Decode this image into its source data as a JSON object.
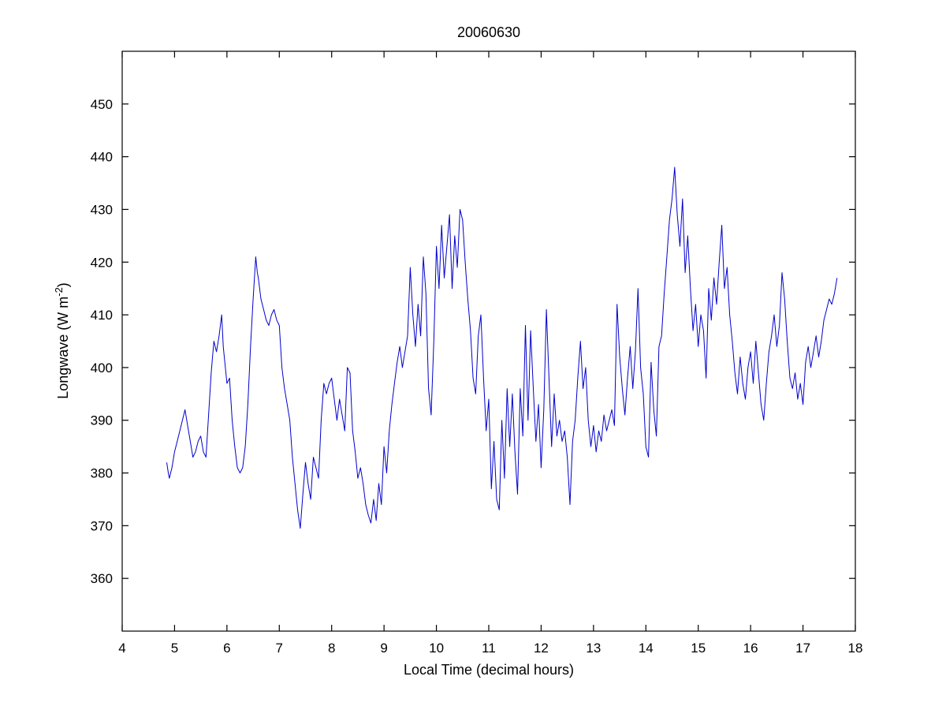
{
  "figure": {
    "background": "#ffffff",
    "axes_color": "#000000"
  },
  "chart_data": {
    "type": "line",
    "title": "20060630",
    "xlabel": "Local Time (decimal hours)",
    "ylabel_main": "Longwave (W m",
    "ylabel_sup": "-2",
    "ylabel_end": ")",
    "xlim": [
      4,
      18
    ],
    "ylim": [
      350,
      460
    ],
    "x_ticks": [
      4,
      5,
      6,
      7,
      8,
      9,
      10,
      11,
      12,
      13,
      14,
      15,
      16,
      17,
      18
    ],
    "y_ticks": [
      360,
      370,
      380,
      390,
      400,
      410,
      420,
      430,
      440,
      450
    ],
    "grid": false,
    "legend": null,
    "line_color": "#0000cd",
    "points": [
      [
        4.85,
        382
      ],
      [
        4.88,
        380
      ],
      [
        4.9,
        379
      ],
      [
        4.95,
        381
      ],
      [
        5.0,
        384
      ],
      [
        5.05,
        386
      ],
      [
        5.1,
        388
      ],
      [
        5.15,
        390
      ],
      [
        5.2,
        392
      ],
      [
        5.25,
        389
      ],
      [
        5.3,
        386
      ],
      [
        5.35,
        383
      ],
      [
        5.4,
        384
      ],
      [
        5.45,
        386
      ],
      [
        5.5,
        387
      ],
      [
        5.55,
        384
      ],
      [
        5.6,
        383
      ],
      [
        5.65,
        391
      ],
      [
        5.7,
        399
      ],
      [
        5.75,
        405
      ],
      [
        5.8,
        403
      ],
      [
        5.85,
        406
      ],
      [
        5.9,
        410
      ],
      [
        5.93,
        404
      ],
      [
        5.95,
        402
      ],
      [
        6.0,
        397
      ],
      [
        6.05,
        398
      ],
      [
        6.1,
        390
      ],
      [
        6.15,
        385
      ],
      [
        6.2,
        381
      ],
      [
        6.25,
        380
      ],
      [
        6.3,
        381
      ],
      [
        6.35,
        385
      ],
      [
        6.4,
        393
      ],
      [
        6.45,
        404
      ],
      [
        6.5,
        413
      ],
      [
        6.55,
        421
      ],
      [
        6.58,
        418
      ],
      [
        6.6,
        417
      ],
      [
        6.65,
        413
      ],
      [
        6.7,
        411
      ],
      [
        6.75,
        409
      ],
      [
        6.8,
        408
      ],
      [
        6.85,
        410
      ],
      [
        6.9,
        411
      ],
      [
        6.95,
        409
      ],
      [
        7.0,
        408
      ],
      [
        7.05,
        400
      ],
      [
        7.1,
        396
      ],
      [
        7.15,
        393
      ],
      [
        7.2,
        390
      ],
      [
        7.25,
        383
      ],
      [
        7.3,
        378
      ],
      [
        7.35,
        373
      ],
      [
        7.4,
        369.5
      ],
      [
        7.45,
        376
      ],
      [
        7.5,
        382
      ],
      [
        7.55,
        378
      ],
      [
        7.6,
        375
      ],
      [
        7.65,
        383
      ],
      [
        7.7,
        381
      ],
      [
        7.75,
        379
      ],
      [
        7.8,
        390
      ],
      [
        7.85,
        397
      ],
      [
        7.9,
        395
      ],
      [
        7.95,
        397
      ],
      [
        8.0,
        398
      ],
      [
        8.05,
        394
      ],
      [
        8.1,
        390
      ],
      [
        8.15,
        394
      ],
      [
        8.2,
        391
      ],
      [
        8.25,
        388
      ],
      [
        8.3,
        400
      ],
      [
        8.35,
        399
      ],
      [
        8.4,
        388
      ],
      [
        8.45,
        384
      ],
      [
        8.5,
        379
      ],
      [
        8.55,
        381
      ],
      [
        8.6,
        378
      ],
      [
        8.65,
        374
      ],
      [
        8.7,
        372
      ],
      [
        8.75,
        370.5
      ],
      [
        8.8,
        375
      ],
      [
        8.85,
        371
      ],
      [
        8.9,
        378
      ],
      [
        8.95,
        374
      ],
      [
        9.0,
        385
      ],
      [
        9.05,
        380
      ],
      [
        9.1,
        388
      ],
      [
        9.15,
        393
      ],
      [
        9.2,
        397
      ],
      [
        9.25,
        401
      ],
      [
        9.3,
        404
      ],
      [
        9.35,
        400
      ],
      [
        9.4,
        403
      ],
      [
        9.45,
        406
      ],
      [
        9.5,
        419
      ],
      [
        9.55,
        410
      ],
      [
        9.6,
        404
      ],
      [
        9.65,
        412
      ],
      [
        9.7,
        406
      ],
      [
        9.75,
        421
      ],
      [
        9.8,
        414
      ],
      [
        9.85,
        396
      ],
      [
        9.9,
        391
      ],
      [
        9.95,
        405
      ],
      [
        10.0,
        423
      ],
      [
        10.05,
        415
      ],
      [
        10.1,
        427
      ],
      [
        10.15,
        417
      ],
      [
        10.2,
        423
      ],
      [
        10.25,
        429
      ],
      [
        10.3,
        415
      ],
      [
        10.35,
        425
      ],
      [
        10.4,
        419
      ],
      [
        10.45,
        430
      ],
      [
        10.5,
        428
      ],
      [
        10.55,
        420
      ],
      [
        10.6,
        413
      ],
      [
        10.65,
        407
      ],
      [
        10.7,
        398
      ],
      [
        10.75,
        395
      ],
      [
        10.8,
        406
      ],
      [
        10.85,
        410
      ],
      [
        10.9,
        398
      ],
      [
        10.95,
        388
      ],
      [
        11.0,
        394
      ],
      [
        11.05,
        377
      ],
      [
        11.1,
        386
      ],
      [
        11.15,
        375
      ],
      [
        11.2,
        373
      ],
      [
        11.25,
        390
      ],
      [
        11.3,
        379
      ],
      [
        11.35,
        396
      ],
      [
        11.4,
        385
      ],
      [
        11.45,
        395
      ],
      [
        11.5,
        384
      ],
      [
        11.55,
        376
      ],
      [
        11.6,
        396
      ],
      [
        11.65,
        387
      ],
      [
        11.7,
        408
      ],
      [
        11.75,
        390
      ],
      [
        11.8,
        407
      ],
      [
        11.85,
        396
      ],
      [
        11.9,
        386
      ],
      [
        11.95,
        393
      ],
      [
        12.0,
        381
      ],
      [
        12.05,
        392
      ],
      [
        12.1,
        411
      ],
      [
        12.15,
        398
      ],
      [
        12.2,
        385
      ],
      [
        12.25,
        395
      ],
      [
        12.3,
        387
      ],
      [
        12.35,
        390
      ],
      [
        12.4,
        386
      ],
      [
        12.45,
        388
      ],
      [
        12.5,
        383
      ],
      [
        12.55,
        374
      ],
      [
        12.6,
        386
      ],
      [
        12.65,
        390
      ],
      [
        12.7,
        398
      ],
      [
        12.75,
        405
      ],
      [
        12.8,
        396
      ],
      [
        12.85,
        400
      ],
      [
        12.9,
        390
      ],
      [
        12.95,
        385
      ],
      [
        13.0,
        389
      ],
      [
        13.05,
        384
      ],
      [
        13.1,
        388
      ],
      [
        13.15,
        386
      ],
      [
        13.2,
        391
      ],
      [
        13.25,
        388
      ],
      [
        13.3,
        390
      ],
      [
        13.35,
        392
      ],
      [
        13.4,
        389
      ],
      [
        13.45,
        412
      ],
      [
        13.5,
        402
      ],
      [
        13.55,
        396
      ],
      [
        13.6,
        391
      ],
      [
        13.65,
        398
      ],
      [
        13.7,
        404
      ],
      [
        13.75,
        396
      ],
      [
        13.8,
        403
      ],
      [
        13.85,
        415
      ],
      [
        13.9,
        400
      ],
      [
        13.95,
        395
      ],
      [
        14.0,
        385
      ],
      [
        14.05,
        383
      ],
      [
        14.1,
        401
      ],
      [
        14.15,
        392
      ],
      [
        14.2,
        387
      ],
      [
        14.25,
        404
      ],
      [
        14.3,
        406
      ],
      [
        14.35,
        414
      ],
      [
        14.4,
        421
      ],
      [
        14.45,
        428
      ],
      [
        14.5,
        432
      ],
      [
        14.55,
        438
      ],
      [
        14.6,
        429
      ],
      [
        14.65,
        423
      ],
      [
        14.7,
        432
      ],
      [
        14.75,
        418
      ],
      [
        14.8,
        425
      ],
      [
        14.85,
        415
      ],
      [
        14.9,
        407
      ],
      [
        14.95,
        412
      ],
      [
        15.0,
        404
      ],
      [
        15.05,
        410
      ],
      [
        15.1,
        407
      ],
      [
        15.15,
        398
      ],
      [
        15.2,
        415
      ],
      [
        15.25,
        409
      ],
      [
        15.3,
        417
      ],
      [
        15.35,
        412
      ],
      [
        15.4,
        420
      ],
      [
        15.45,
        427
      ],
      [
        15.5,
        415
      ],
      [
        15.55,
        419
      ],
      [
        15.6,
        410
      ],
      [
        15.65,
        405
      ],
      [
        15.7,
        399
      ],
      [
        15.75,
        395
      ],
      [
        15.8,
        402
      ],
      [
        15.85,
        397
      ],
      [
        15.9,
        394
      ],
      [
        15.95,
        400
      ],
      [
        16.0,
        403
      ],
      [
        16.05,
        397
      ],
      [
        16.1,
        405
      ],
      [
        16.15,
        399
      ],
      [
        16.2,
        393
      ],
      [
        16.25,
        390
      ],
      [
        16.3,
        397
      ],
      [
        16.35,
        403
      ],
      [
        16.4,
        406
      ],
      [
        16.45,
        410
      ],
      [
        16.5,
        404
      ],
      [
        16.55,
        408
      ],
      [
        16.6,
        418
      ],
      [
        16.65,
        413
      ],
      [
        16.7,
        405
      ],
      [
        16.75,
        398
      ],
      [
        16.8,
        396
      ],
      [
        16.85,
        399
      ],
      [
        16.9,
        394
      ],
      [
        16.95,
        397
      ],
      [
        17.0,
        393
      ],
      [
        17.05,
        401
      ],
      [
        17.1,
        404
      ],
      [
        17.15,
        400
      ],
      [
        17.2,
        403
      ],
      [
        17.25,
        406
      ],
      [
        17.3,
        402
      ],
      [
        17.35,
        405
      ],
      [
        17.4,
        409
      ],
      [
        17.45,
        411
      ],
      [
        17.5,
        413
      ],
      [
        17.55,
        412
      ],
      [
        17.6,
        414
      ],
      [
        17.65,
        417
      ]
    ]
  }
}
